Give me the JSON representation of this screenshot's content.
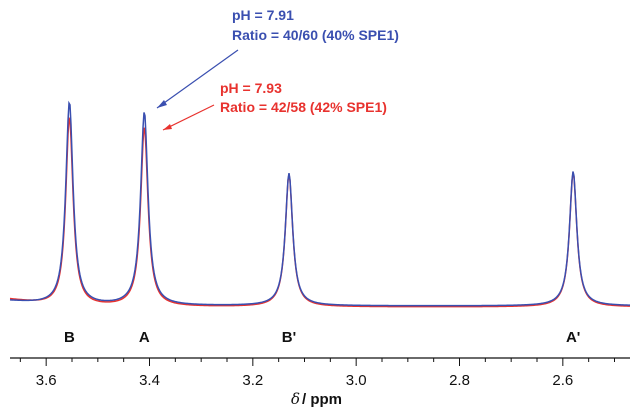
{
  "chart_data": {
    "type": "line",
    "xlabel_symbol": "δ",
    "xlabel_unit": "/ ppm",
    "xlim": [
      3.67,
      2.47
    ],
    "x_ticks": [
      "3.6",
      "3.4",
      "3.2",
      "3.0",
      "2.8",
      "2.6"
    ],
    "peak_labels": [
      {
        "label": "B",
        "ppm": 3.555
      },
      {
        "label": "A",
        "ppm": 3.41
      },
      {
        "label": "B'",
        "ppm": 3.13
      },
      {
        "label": "A'",
        "ppm": 2.58
      }
    ],
    "series": [
      {
        "color": "#3a4fb0",
        "annotation_line1": "pH = 7.91",
        "annotation_line2": "Ratio = 40/60 (40% SPE1)",
        "peaks": [
          {
            "ppm": 3.555,
            "height": 1.0
          },
          {
            "ppm": 3.41,
            "height": 0.95
          },
          {
            "ppm": 3.13,
            "height": 0.65
          },
          {
            "ppm": 2.58,
            "height": 0.66
          }
        ]
      },
      {
        "color": "#e8322e",
        "annotation_line1": "pH = 7.93",
        "annotation_line2": "Ratio = 42/58 (42% SPE1)",
        "peaks": [
          {
            "ppm": 3.555,
            "height": 0.93
          },
          {
            "ppm": 3.41,
            "height": 0.88
          },
          {
            "ppm": 3.13,
            "height": 0.65
          },
          {
            "ppm": 2.58,
            "height": 0.66
          }
        ]
      }
    ]
  }
}
